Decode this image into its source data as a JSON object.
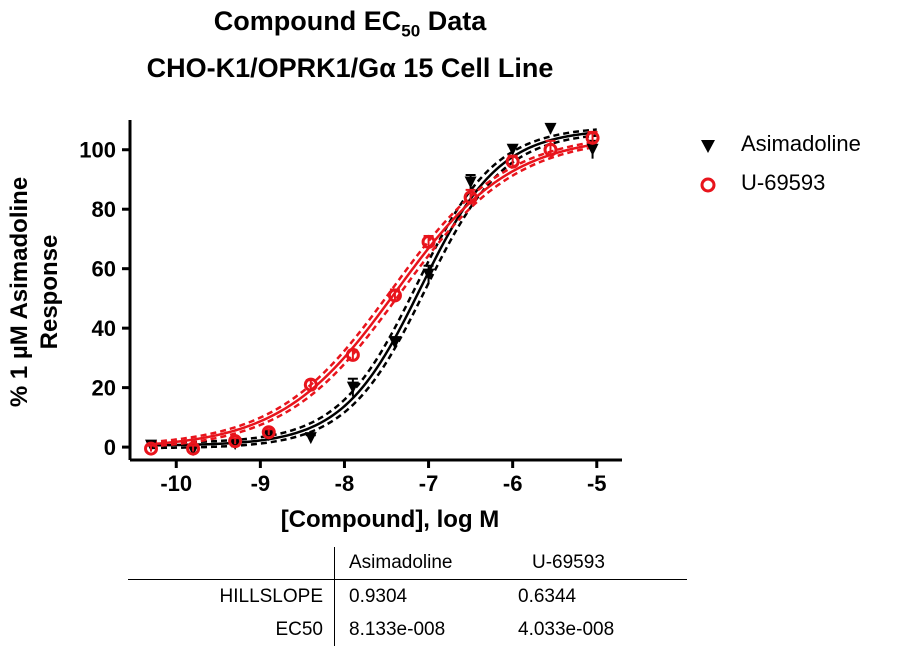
{
  "chart_data": {
    "type": "scatter",
    "title": "Compound EC",
    "title_subscript": "50",
    "title_suffix": " Data",
    "subtitle_pre": "CHO-K1/OPRK1/G",
    "subtitle_alpha": "α",
    "subtitle_post": " 15 Cell Line",
    "xlabel": "[Compound], log M",
    "ylabel_line1": "% 1 µM Asimadoline",
    "ylabel_line2": "Response",
    "xlim": [
      -10.55,
      -4.7
    ],
    "ylim": [
      -4,
      110
    ],
    "xticks": [
      -10,
      -9,
      -8,
      -7,
      -6,
      -5
    ],
    "xtick_labels": [
      "-10",
      "-9",
      "-8",
      "-7",
      "-6",
      "-5"
    ],
    "yticks": [
      0,
      20,
      40,
      60,
      80,
      100
    ],
    "ytick_labels": [
      "0",
      "20",
      "40",
      "60",
      "80",
      "100"
    ],
    "series": [
      {
        "name": "Asimadoline",
        "color": "#000000",
        "marker": "triangle-down",
        "x": [
          -10.3,
          -9.8,
          -9.3,
          -8.9,
          -8.4,
          -7.9,
          -7.4,
          -7.0,
          -6.5,
          -6.0,
          -5.55,
          -5.05
        ],
        "y": [
          0.5,
          -1.0,
          1.0,
          4.0,
          3.0,
          20.0,
          35.0,
          58.0,
          89.0,
          100.0,
          107.0,
          100.0
        ],
        "err": [
          1.5,
          1.0,
          1.0,
          1.5,
          1.0,
          3.0,
          2.0,
          3.0,
          2.5,
          1.5,
          1.5,
          3.0
        ],
        "fit": {
          "bottom": 0.5,
          "top": 107,
          "log_ec50": -7.09,
          "hillslope": 0.9304,
          "ci_width": 3.5
        }
      },
      {
        "name": "U-69593",
        "color": "#e8141c",
        "marker": "circle-open",
        "x": [
          -10.3,
          -9.8,
          -9.3,
          -8.9,
          -8.4,
          -7.9,
          -7.4,
          -7.0,
          -6.5,
          -6.0,
          -5.55,
          -5.05
        ],
        "y": [
          -0.5,
          -0.5,
          2.0,
          5.0,
          21.0,
          31.0,
          51.0,
          69.0,
          84.0,
          96.0,
          100.0,
          104.0
        ],
        "err": [
          1.0,
          1.0,
          1.0,
          1.0,
          1.5,
          1.5,
          2.0,
          2.0,
          2.5,
          2.0,
          3.0,
          2.0
        ],
        "fit": {
          "bottom": -0.5,
          "top": 105,
          "log_ec50": -7.39,
          "hillslope": 0.6344,
          "ci_width": 2.5
        }
      }
    ]
  },
  "results_table": {
    "columns": [
      "",
      "Asimadoline",
      "U-69593"
    ],
    "rows": [
      [
        "HILLSLOPE",
        "0.9304",
        "0.6344"
      ],
      [
        "EC50",
        "8.133e-008",
        "4.033e-008"
      ]
    ]
  }
}
